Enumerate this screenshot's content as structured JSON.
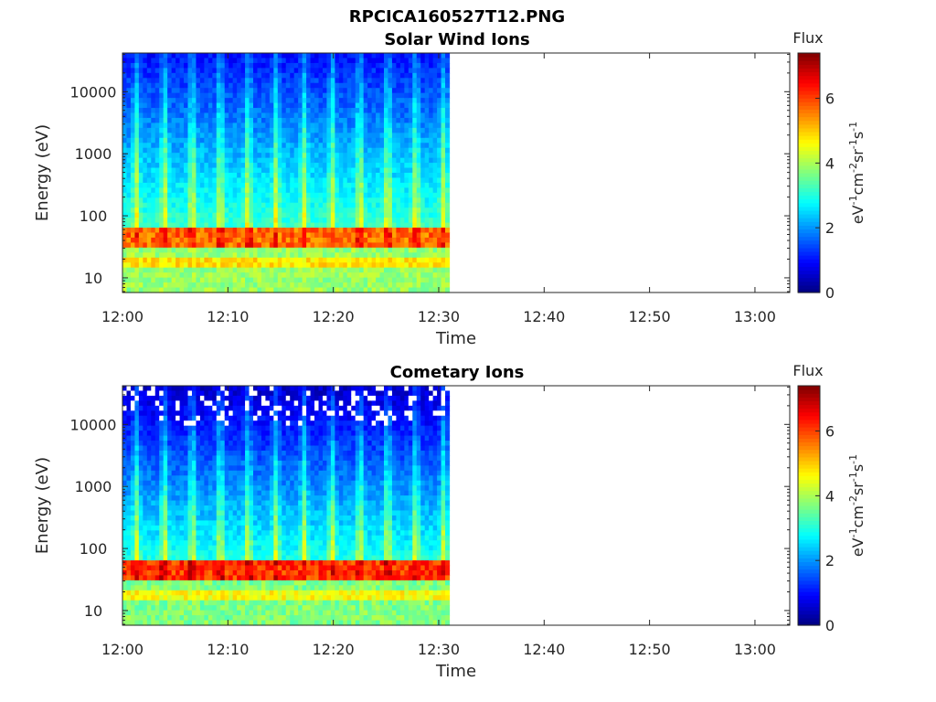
{
  "figure_title": "RPCICA160527T12.PNG",
  "colors": {
    "background": "#ffffff",
    "axis": "#262626",
    "empty_region": "#ffffff"
  },
  "chart_data": [
    {
      "type": "heatmap",
      "title": "Solar Wind Ions",
      "xlabel": "Time",
      "ylabel": "Energy (eV)",
      "x_ticks": [
        "12:00",
        "12:10",
        "12:20",
        "12:30",
        "12:40",
        "12:50",
        "13:00"
      ],
      "x_tick_minutes": [
        0,
        10,
        20,
        30,
        40,
        50,
        60
      ],
      "xlim_minutes": [
        0,
        63.3
      ],
      "data_end_minutes": 31,
      "y_scale": "log",
      "y_ticks": [
        "10",
        "100",
        "1000",
        "10000"
      ],
      "y_tick_values": [
        10,
        100,
        1000,
        10000
      ],
      "ylim": [
        5.8,
        42000
      ],
      "colorbar": {
        "label": "Flux",
        "unit_label": "eV-1cm-2sr-1s-1",
        "ticks": [
          "0",
          "2",
          "4",
          "6"
        ],
        "tick_values": [
          0,
          2,
          4,
          6
        ],
        "range": [
          0,
          7.4
        ],
        "colormap": "jet"
      },
      "profile": {
        "description_band_eV": [
          30,
          60
        ],
        "peak_flux": 5.8,
        "low_energy_flux": 3.5,
        "high_energy_flux": 1.0,
        "spike_period_minutes": 2.65
      }
    },
    {
      "type": "heatmap",
      "title": "Cometary Ions",
      "xlabel": "Time",
      "ylabel": "Energy (eV)",
      "x_ticks": [
        "12:00",
        "12:10",
        "12:20",
        "12:30",
        "12:40",
        "12:50",
        "13:00"
      ],
      "x_tick_minutes": [
        0,
        10,
        20,
        30,
        40,
        50,
        60
      ],
      "xlim_minutes": [
        0,
        63.3
      ],
      "data_end_minutes": 31,
      "y_scale": "log",
      "y_ticks": [
        "10",
        "100",
        "1000",
        "10000"
      ],
      "y_tick_values": [
        10,
        100,
        1000,
        10000
      ],
      "ylim": [
        5.8,
        42000
      ],
      "colorbar": {
        "label": "Flux",
        "unit_label": "eV-1cm-2sr-1s-1",
        "ticks": [
          "0",
          "2",
          "4",
          "6"
        ],
        "tick_values": [
          0,
          2,
          4,
          6
        ],
        "range": [
          0,
          7.4
        ],
        "colormap": "jet"
      },
      "profile": {
        "description_band_eV": [
          30,
          60
        ],
        "peak_flux": 6.2,
        "low_energy_flux": 3.3,
        "high_energy_flux": 0.5,
        "spike_period_minutes": 2.65
      }
    }
  ]
}
